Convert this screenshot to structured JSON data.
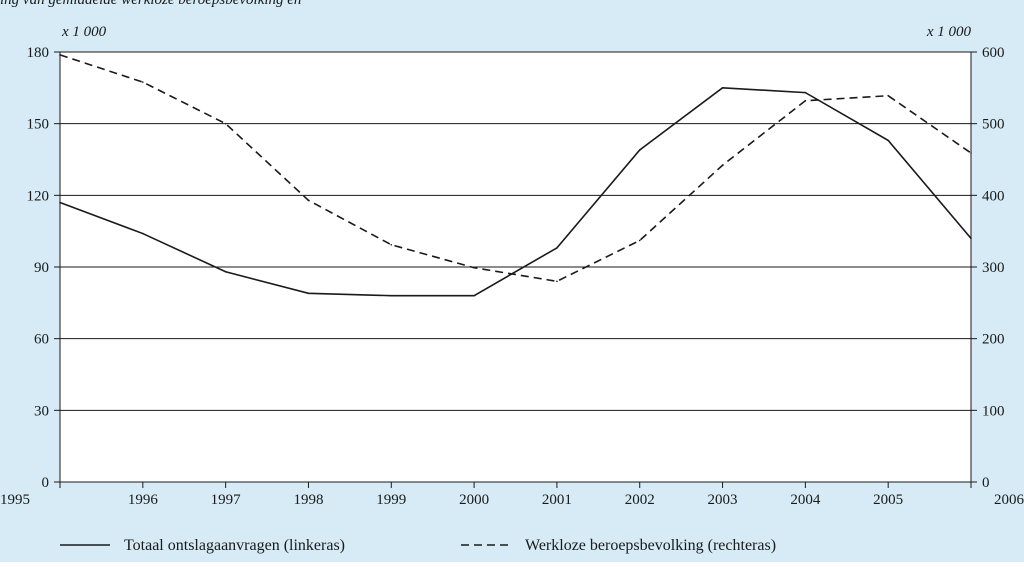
{
  "header": {
    "cut_caption": "ing van gemiddelde werkloze beroepsbevolking en"
  },
  "chart_data": {
    "type": "line",
    "title": "",
    "x": [
      1995,
      1996,
      1997,
      1998,
      1999,
      2000,
      2001,
      2002,
      2003,
      2004,
      2005,
      2006
    ],
    "x_tick_labels": [
      "1995",
      "1996",
      "1997",
      "1998",
      "1999",
      "2000",
      "2001",
      "2002",
      "2003",
      "2004",
      "2005",
      "2006"
    ],
    "left_axis": {
      "unit_label": "x 1 000",
      "ylim": [
        0,
        180
      ],
      "ticks": [
        0,
        30,
        60,
        90,
        120,
        150,
        180
      ],
      "tick_labels": [
        "0",
        "30",
        "60",
        "90",
        "120",
        "150",
        "180"
      ]
    },
    "right_axis": {
      "unit_label": "x 1 000",
      "ylim": [
        0,
        600
      ],
      "ticks": [
        0,
        100,
        200,
        300,
        400,
        500,
        600
      ],
      "tick_labels": [
        "0",
        "100",
        "200",
        "300",
        "400",
        "500",
        "600"
      ]
    },
    "grid": true,
    "legend_position": "bottom-left",
    "series": [
      {
        "name": "Totaal ontslagaanvragen (linkeras)",
        "axis": "left",
        "style": "solid",
        "color": "#1a1a1a",
        "values": [
          117,
          104,
          88,
          79,
          78,
          78,
          98,
          139,
          165,
          163,
          143,
          102
        ]
      },
      {
        "name": "Werkloze beroepsbevolking (rechteras)",
        "axis": "right",
        "style": "dashed",
        "color": "#1a1a1a",
        "values": [
          596,
          558,
          500,
          393,
          331,
          299,
          280,
          337,
          442,
          532,
          539,
          459
        ]
      }
    ]
  },
  "colors": {
    "background": "#d6ebf6",
    "plot_background": "#ffffff",
    "gridline": "#1a1a1a",
    "text": "#1a1a1a"
  }
}
